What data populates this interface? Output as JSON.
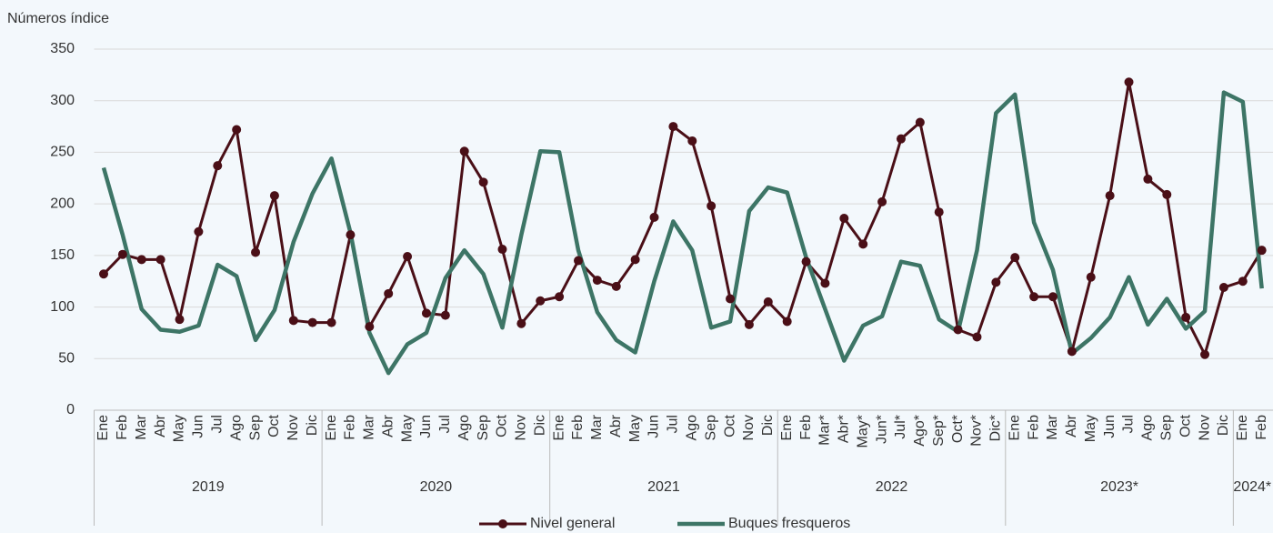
{
  "chart_data": {
    "type": "line",
    "y_axis_title": "Números índice",
    "groups": [
      {
        "label": "2019",
        "months": [
          "Ene",
          "Feb",
          "Mar",
          "Abr",
          "May",
          "Jun",
          "Jul",
          "Ago",
          "Sep",
          "Oct",
          "Nov",
          "Dic"
        ]
      },
      {
        "label": "2020",
        "months": [
          "Ene",
          "Feb",
          "Mar",
          "Abr",
          "May",
          "Jun",
          "Jul",
          "Ago",
          "Sep",
          "Oct",
          "Nov",
          "Dic"
        ]
      },
      {
        "label": "2021",
        "months": [
          "Ene",
          "Feb",
          "Mar",
          "Abr",
          "May",
          "Jun",
          "Jul",
          "Ago",
          "Sep",
          "Oct",
          "Nov",
          "Dic"
        ]
      },
      {
        "label": "2022",
        "months": [
          "Ene",
          "Feb",
          "Mar*",
          "Abr*",
          "May*",
          "Jun*",
          "Jul*",
          "Ago*",
          "Sep*",
          "Oct*",
          "Nov*",
          "Dic*"
        ]
      },
      {
        "label": "2023*",
        "months": [
          "Ene",
          "Feb",
          "Mar",
          "Abr",
          "May",
          "Jun",
          "Jul",
          "Ago",
          "Sep",
          "Oct",
          "Nov",
          "Dic"
        ]
      },
      {
        "label": "2024*",
        "months": [
          "Ene",
          "Feb"
        ]
      }
    ],
    "series": [
      {
        "name": "Nivel general",
        "color": "#4a0f17",
        "marker": true,
        "values": [
          132,
          151,
          146,
          146,
          88,
          173,
          237,
          272,
          153,
          208,
          87,
          85,
          85,
          170,
          81,
          113,
          149,
          94,
          92,
          251,
          221,
          156,
          84,
          106,
          110,
          145,
          126,
          120,
          146,
          187,
          275,
          261,
          198,
          108,
          83,
          105,
          86,
          144,
          123,
          186,
          161,
          202,
          263,
          279,
          192,
          78,
          71,
          124,
          148,
          110,
          110,
          57,
          129,
          208,
          318,
          224,
          209,
          90,
          54,
          119,
          125,
          155
        ]
      },
      {
        "name": "Buques fresqueros",
        "color": "#3d7566",
        "marker": false,
        "values": [
          235,
          170,
          98,
          78,
          76,
          82,
          141,
          130,
          68,
          97,
          163,
          210,
          244,
          172,
          75,
          36,
          64,
          75,
          128,
          155,
          132,
          80,
          170,
          251,
          250,
          155,
          95,
          68,
          56,
          125,
          183,
          155,
          80,
          86,
          193,
          216,
          211,
          148,
          98,
          48,
          82,
          91,
          144,
          140,
          88,
          76,
          155,
          288,
          306,
          182,
          136,
          55,
          70,
          90,
          129,
          83,
          108,
          79,
          96,
          308,
          299,
          118
        ]
      }
    ],
    "ylim": [
      0,
      350
    ],
    "yticks": [
      0,
      50,
      100,
      150,
      200,
      250,
      300,
      350
    ],
    "grid": true
  }
}
